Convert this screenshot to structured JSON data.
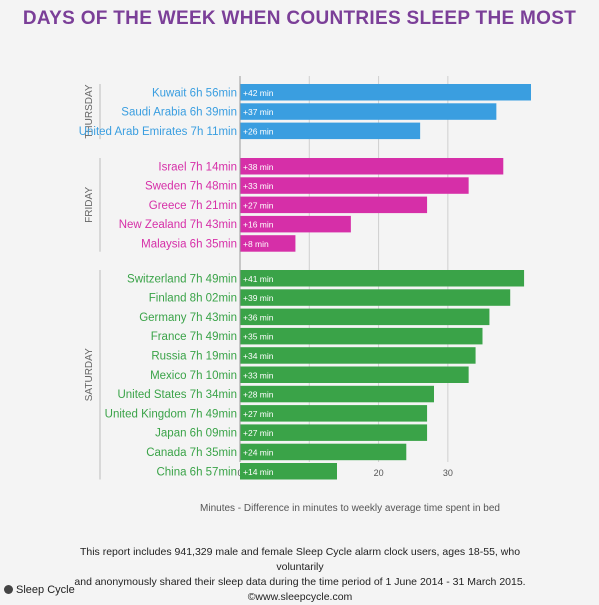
{
  "brand": "Sleep Cycle",
  "footer": {
    "line1": "This report includes 941,329 male and female Sleep Cycle alarm clock users, ages 18-55, who voluntarily",
    "line2": "and anonymously shared their sleep data during the time period of 1 June 2014 - 31 March 2015.",
    "line3": "©www.sleepcycle.com"
  },
  "chart_data": {
    "type": "bar",
    "orientation": "horizontal",
    "title": "DAYS OF THE WEEK WHEN COUNTRIES SLEEP THE MOST",
    "xlabel": "Minutes - Difference in minutes to weekly average time spent in bed",
    "xlim": [
      0,
      42
    ],
    "xticks": [
      0,
      10,
      20,
      30
    ],
    "grid": true,
    "groups": [
      {
        "name": "THURSDAY",
        "color": "#3a9ee0",
        "bars": [
          {
            "label": "Kuwait 6h 56min",
            "value": 42,
            "value_label": "+42 min"
          },
          {
            "label": "Saudi Arabia 6h 39min",
            "value": 37,
            "value_label": "+37 min"
          },
          {
            "label": "United Arab Emirates 7h 11min",
            "value": 26,
            "value_label": "+26 min"
          }
        ]
      },
      {
        "name": "FRIDAY",
        "color": "#d62fa8",
        "bars": [
          {
            "label": "Israel 7h 14min",
            "value": 38,
            "value_label": "+38 min"
          },
          {
            "label": "Sweden 7h 48min",
            "value": 33,
            "value_label": "+33 min"
          },
          {
            "label": "Greece 7h 21min",
            "value": 27,
            "value_label": "+27 min"
          },
          {
            "label": "New Zealand 7h 43min",
            "value": 16,
            "value_label": "+16 min"
          },
          {
            "label": "Malaysia 6h 35min",
            "value": 8,
            "value_label": "+8 min"
          }
        ]
      },
      {
        "name": "SATURDAY",
        "color": "#3aa348",
        "bars": [
          {
            "label": "Switzerland 7h 49min",
            "value": 41,
            "value_label": "+41 min"
          },
          {
            "label": "Finland 8h 02min",
            "value": 39,
            "value_label": "+39 min"
          },
          {
            "label": "Germany 7h 43min",
            "value": 36,
            "value_label": "+36 min"
          },
          {
            "label": "France 7h 49min",
            "value": 35,
            "value_label": "+35 min"
          },
          {
            "label": "Russia 7h 19min",
            "value": 34,
            "value_label": "+34 min"
          },
          {
            "label": "Mexico 7h 10min",
            "value": 33,
            "value_label": "+33 min"
          },
          {
            "label": "United States 7h 34min",
            "value": 28,
            "value_label": "+28 min"
          },
          {
            "label": "United Kingdom 7h 49min",
            "value": 27,
            "value_label": "+27 min"
          },
          {
            "label": "Japan 6h 09min",
            "value": 27,
            "value_label": "+27 min"
          },
          {
            "label": "Canada 7h 35min",
            "value": 24,
            "value_label": "+24 min"
          },
          {
            "label": "China 6h 57min",
            "value": 14,
            "value_label": "+14 min"
          }
        ]
      }
    ]
  }
}
